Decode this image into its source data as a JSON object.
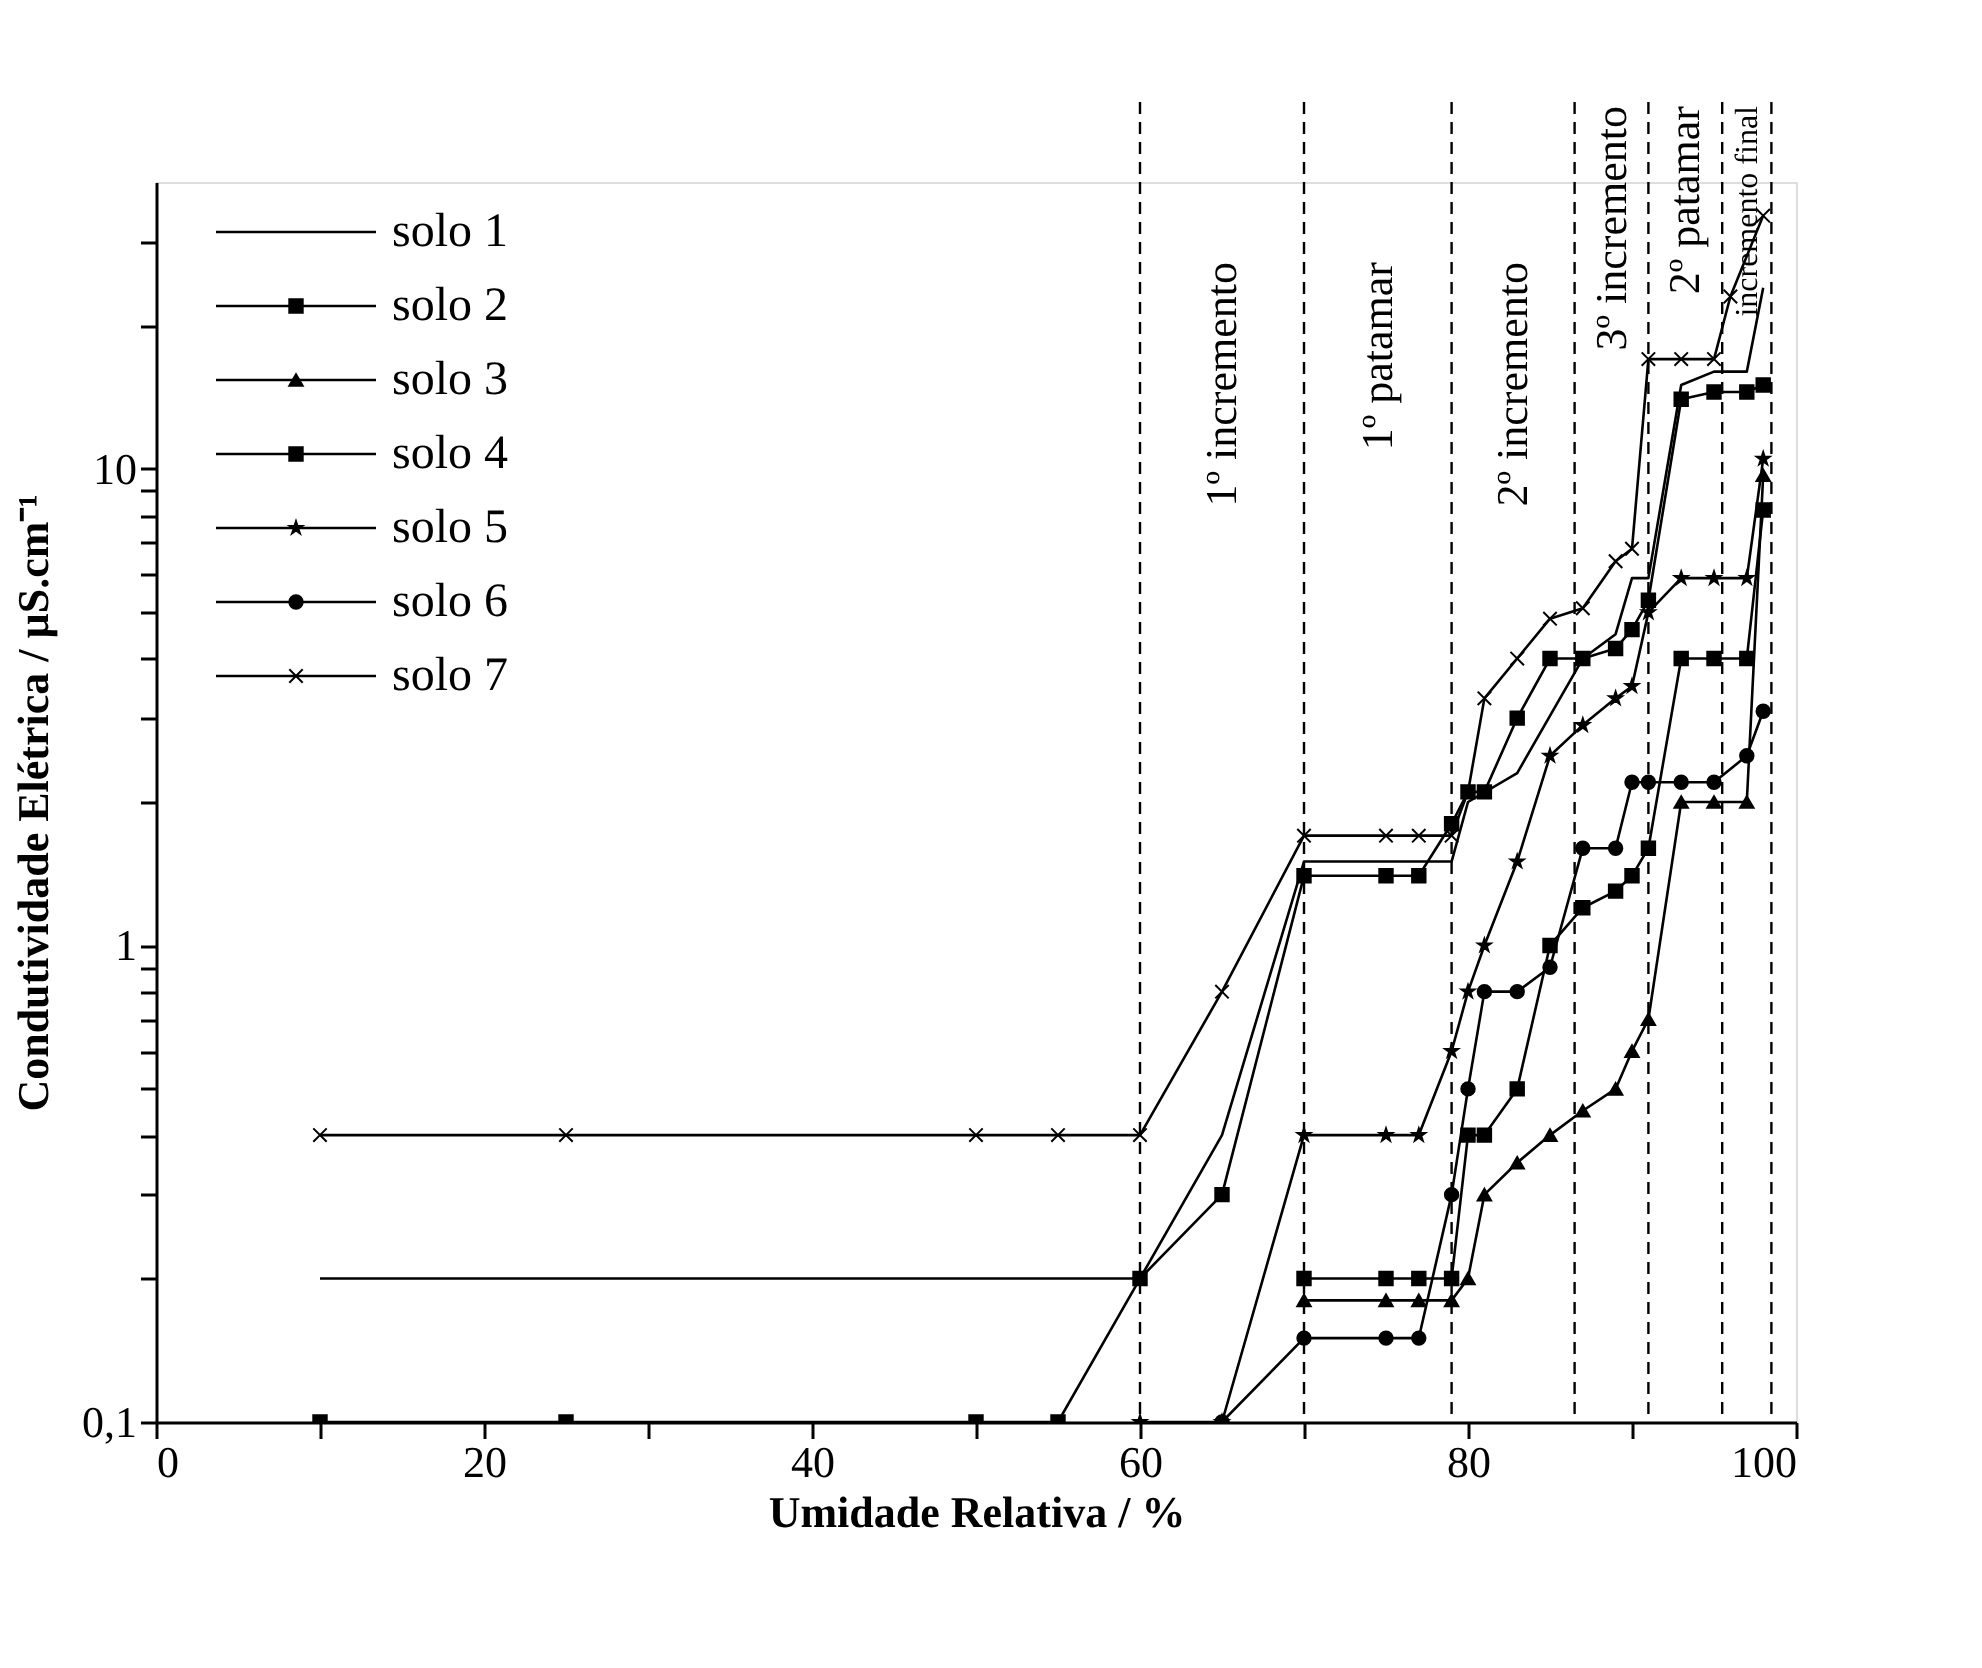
{
  "chart_data": {
    "type": "line",
    "xlabel": "Umidade Relativa / %",
    "ylabel": "Condutividade Elétrica / µS.cm⁻¹",
    "xlim": [
      0,
      100
    ],
    "xticks": [
      0,
      {
        "value": 10,
        "label": null
      },
      20,
      {
        "value": 30,
        "label": null
      },
      40,
      {
        "value": 50,
        "label": null
      },
      60,
      {
        "value": 70,
        "label": null
      },
      80,
      {
        "value": 90,
        "label": null
      },
      100
    ],
    "ylim": [
      0.1,
      40
    ],
    "yticks": [
      {
        "value": 0.1,
        "label": "0,1"
      },
      {
        "value": 0.2,
        "label": null
      },
      {
        "value": 0.3,
        "label": null
      },
      {
        "value": 0.4,
        "label": null
      },
      {
        "value": 0.5,
        "label": null
      },
      {
        "value": 0.6,
        "label": null
      },
      {
        "value": 0.7,
        "label": null
      },
      {
        "value": 0.8,
        "label": null
      },
      {
        "value": 0.9,
        "label": null
      },
      1,
      {
        "value": 2,
        "label": null
      },
      {
        "value": 3,
        "label": null
      },
      {
        "value": 4,
        "label": null
      },
      {
        "value": 5,
        "label": null
      },
      {
        "value": 6,
        "label": null
      },
      {
        "value": 7,
        "label": null
      },
      {
        "value": 8,
        "label": null
      },
      {
        "value": 9,
        "label": null
      },
      10,
      {
        "value": 20,
        "label": null
      },
      {
        "value": 30,
        "label": null
      }
    ],
    "log": "y",
    "grid": false,
    "legend": "top left",
    "line_style": "solid",
    "series": [
      {
        "name": "solo 1",
        "color": "#000000",
        "marker": "none",
        "x": [
          10,
          60,
          65,
          70,
          79,
          80,
          83,
          87,
          89,
          90,
          91,
          93,
          95,
          97,
          98
        ],
        "values": [
          0.2,
          0.2,
          0.4,
          1.5,
          1.5,
          2.0,
          2.3,
          4.0,
          4.5,
          5.9,
          5.9,
          15,
          16,
          16,
          24
        ]
      },
      {
        "name": "solo 2",
        "color": "#000000",
        "marker": "square",
        "x": [
          70,
          75,
          77,
          79,
          80,
          81,
          83,
          85,
          87,
          89,
          90,
          91,
          93,
          95,
          97,
          98
        ],
        "values": [
          0.2,
          0.2,
          0.2,
          0.2,
          0.4,
          0.4,
          0.5,
          1.0,
          1.2,
          1.3,
          1.4,
          1.6,
          4.0,
          4.0,
          4.0,
          8.2
        ]
      },
      {
        "name": "solo 3",
        "color": "#000000",
        "marker": "triangle",
        "x": [
          70,
          75,
          77,
          79,
          80,
          81,
          83,
          85,
          87,
          89,
          90,
          91,
          93,
          95,
          97,
          98
        ],
        "values": [
          0.18,
          0.18,
          0.18,
          0.18,
          0.2,
          0.3,
          0.35,
          0.4,
          0.45,
          0.5,
          0.6,
          0.7,
          2.0,
          2.0,
          2.0,
          9.7
        ]
      },
      {
        "name": "solo 4",
        "color": "#000000",
        "marker": "square",
        "x": [
          10,
          25,
          50,
          55,
          60,
          65,
          70,
          75,
          77,
          79,
          80,
          81,
          83,
          85,
          87,
          89,
          90,
          91,
          93,
          95,
          97,
          98
        ],
        "values": [
          0.1,
          0.1,
          0.1,
          0.1,
          0.2,
          0.3,
          1.4,
          1.4,
          1.4,
          1.8,
          2.1,
          2.1,
          3.0,
          4.0,
          4.0,
          4.2,
          4.6,
          5.3,
          14,
          14.5,
          14.5,
          15
        ]
      },
      {
        "name": "solo 5",
        "color": "#000000",
        "marker": "star",
        "x": [
          60,
          65,
          70,
          75,
          77,
          79,
          80,
          81,
          83,
          85,
          87,
          89,
          90,
          91,
          93,
          95,
          97,
          98
        ],
        "values": [
          0.1,
          0.1,
          0.4,
          0.4,
          0.4,
          0.6,
          0.8,
          1.0,
          1.5,
          2.5,
          2.9,
          3.3,
          3.5,
          5.0,
          5.9,
          5.9,
          5.9,
          10.5
        ]
      },
      {
        "name": "solo 6",
        "color": "#000000",
        "marker": "circle",
        "x": [
          65,
          70,
          75,
          77,
          79,
          80,
          81,
          83,
          85,
          87,
          89,
          90,
          91,
          93,
          95,
          97,
          98
        ],
        "values": [
          0.1,
          0.15,
          0.15,
          0.15,
          0.3,
          0.5,
          0.8,
          0.8,
          0.9,
          1.6,
          1.6,
          2.2,
          2.2,
          2.2,
          2.2,
          2.5,
          3.1
        ]
      },
      {
        "name": "solo 7",
        "color": "#000000",
        "marker": "cross",
        "x": [
          10,
          25,
          50,
          55,
          60,
          65,
          70,
          75,
          77,
          79,
          80,
          81,
          83,
          85,
          87,
          89,
          90,
          91,
          93,
          95,
          96,
          98
        ],
        "values": [
          0.4,
          0.4,
          0.4,
          0.4,
          0.4,
          0.8,
          1.7,
          1.7,
          1.7,
          1.7,
          2.1,
          3.3,
          4.0,
          4.85,
          5.1,
          6.4,
          6.8,
          17,
          17,
          17,
          23,
          34
        ]
      }
    ],
    "ref_lines": [
      {
        "axis": "x",
        "value": 60,
        "label": "1º incremento",
        "line_style": "dashed"
      },
      {
        "axis": "x",
        "value": 70,
        "label": "1º patamar",
        "line_style": "dashed"
      },
      {
        "axis": "x",
        "value": 79,
        "label": "2º incremento",
        "line_style": "dashed"
      },
      {
        "axis": "x",
        "value": 86.5,
        "label": "3º incremento",
        "line_style": "dashed"
      },
      {
        "axis": "x",
        "value": 91,
        "label": "2º patamar",
        "line_style": "dashed"
      },
      {
        "axis": "x",
        "value": 95.5,
        "label": "incremento final",
        "line_style": "dashed"
      },
      {
        "axis": "x",
        "value": 98.5,
        "line_style": "dashed"
      }
    ]
  }
}
